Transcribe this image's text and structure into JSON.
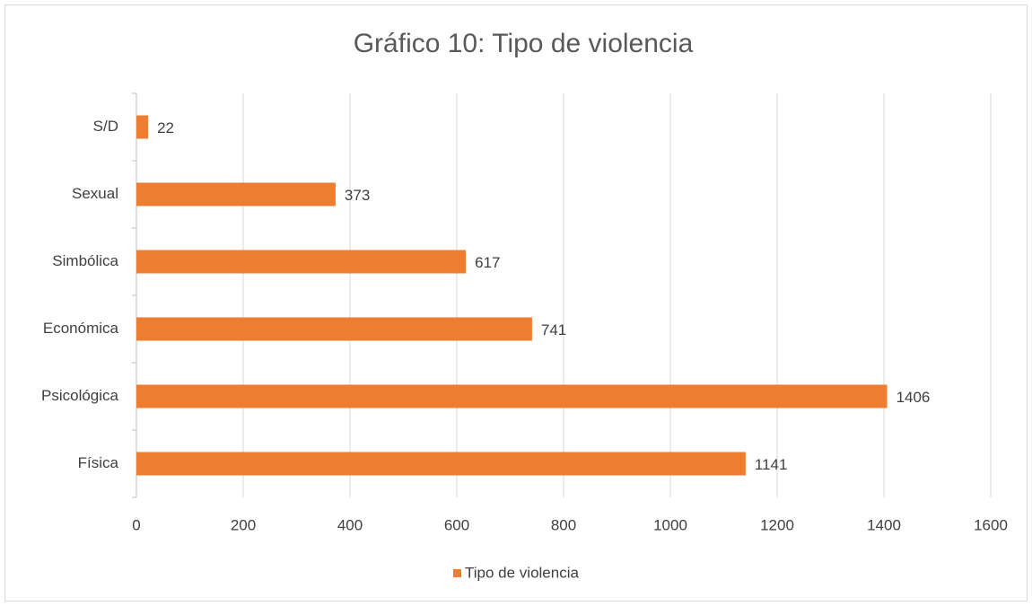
{
  "chart_data": {
    "type": "bar",
    "orientation": "horizontal",
    "title": "Gráfico 10: Tipo de violencia",
    "categories": [
      "Física",
      "Psicológica",
      "Económica",
      "Simbólica",
      "Sexual",
      "S/D"
    ],
    "series": [
      {
        "name": "Tipo de violencia",
        "color": "#ed7d31",
        "values": [
          1141,
          1406,
          741,
          617,
          373,
          22
        ]
      }
    ],
    "xlim": [
      0,
      1600
    ],
    "xticks": [
      0,
      200,
      400,
      600,
      800,
      1000,
      1200,
      1400,
      1600
    ],
    "grid": true,
    "legend": "bottom"
  }
}
